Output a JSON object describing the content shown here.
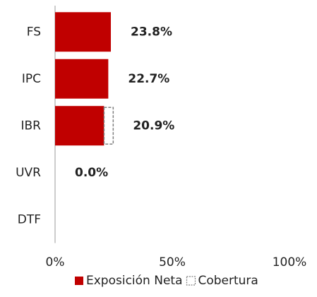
{
  "chart_data": {
    "type": "bar",
    "orientation": "horizontal",
    "stacked": true,
    "categories": [
      "FS",
      "IPC",
      "IBR",
      "UVR",
      "DTF"
    ],
    "series": [
      {
        "name": "Exposición Neta",
        "color": "#c00000",
        "style": "solid",
        "values": [
          23.8,
          22.7,
          20.9,
          0.0,
          null
        ],
        "value_labels": [
          "23.8%",
          "22.7%",
          "20.9%",
          "0.0%",
          null
        ]
      },
      {
        "name": "Cobertura",
        "color": "#808080",
        "style": "dashed",
        "values": [
          null,
          null,
          3.9,
          null,
          null
        ]
      }
    ],
    "xlim": [
      0,
      100
    ],
    "xticks": [
      {
        "value": 0,
        "label": "0%"
      },
      {
        "value": 50,
        "label": "50%"
      },
      {
        "value": 100,
        "label": "100%"
      }
    ],
    "grid": false,
    "legend": "bottom"
  }
}
